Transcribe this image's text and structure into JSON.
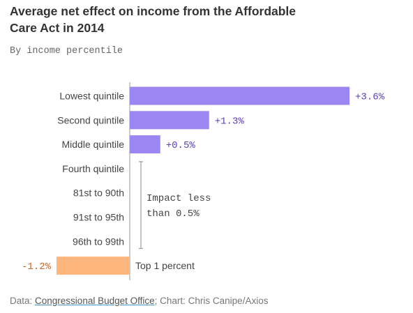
{
  "title": "Average net effect on income from the Affordable Care Act in 2014",
  "subtitle": "By income percentile",
  "chart_data": {
    "type": "bar",
    "orientation": "horizontal",
    "categories": [
      "Lowest quintile",
      "Second quintile",
      "Middle quintile",
      "Fourth quintile",
      "81st to 90th",
      "91st to 95th",
      "96th to 99th",
      "Top 1 percent"
    ],
    "values": [
      3.6,
      1.3,
      0.5,
      null,
      null,
      null,
      null,
      -1.2
    ],
    "value_labels": [
      "+3.6%",
      "+1.3%",
      "+0.5%",
      "",
      "",
      "",
      "",
      "-1.2%"
    ],
    "unit": "%",
    "xlim": [
      -1.2,
      3.6
    ],
    "positive_color": "#9b86f2",
    "negative_color": "#fdb77e",
    "positive_label_color": "#5b3fb8",
    "negative_label_color": "#d4621c",
    "annotation": "Impact less than 0.5%",
    "annotation_lines": [
      "Impact less",
      "than 0.5%"
    ],
    "annotation_categories": [
      "Fourth quintile",
      "81st to 90th",
      "91st to 95th",
      "96th to 99th"
    ]
  },
  "source": {
    "data_prefix": "Data: ",
    "data_link": "Congressional Budget Office",
    "suffix": "; Chart: Chris Canipe/Axios"
  }
}
